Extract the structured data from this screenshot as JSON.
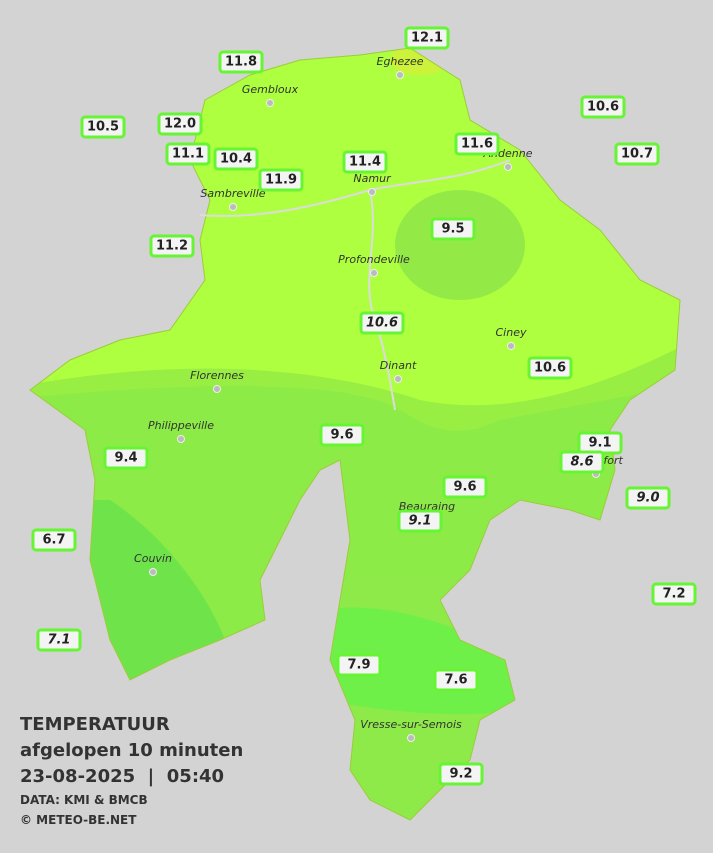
{
  "stations": [
    "12.1",
    "11.8",
    "10.5",
    "12.0",
    "10.6",
    "11.1",
    "10.4",
    "11.6",
    "10.7",
    "11.4",
    "11.9",
    "9.5",
    "11.2",
    "10.6",
    "10.6",
    "9.6",
    "9.1",
    "8.6",
    "9.4",
    "9.6",
    "9.0",
    "9.1",
    "6.7",
    "7.2",
    "7.1",
    "7.9",
    "7.6",
    "9.2"
  ],
  "places": [
    "Eghezee",
    "Gembloux",
    "Andenne",
    "Namur",
    "Sambreville",
    "Profondeville",
    "Ciney",
    "Dinant",
    "Florennes",
    "Philippeville",
    "Rochefort",
    "Beauraing",
    "Couvin",
    "Vresse-sur-Semois"
  ],
  "legend": {
    "title": "TEMPERATUUR",
    "subtitle": "afgelopen 10 minuten",
    "datetime": "23-08-2025  |  05:40",
    "source": "DATA: KMI & BMCB",
    "copyright": "© METEO-BE.NET"
  }
}
